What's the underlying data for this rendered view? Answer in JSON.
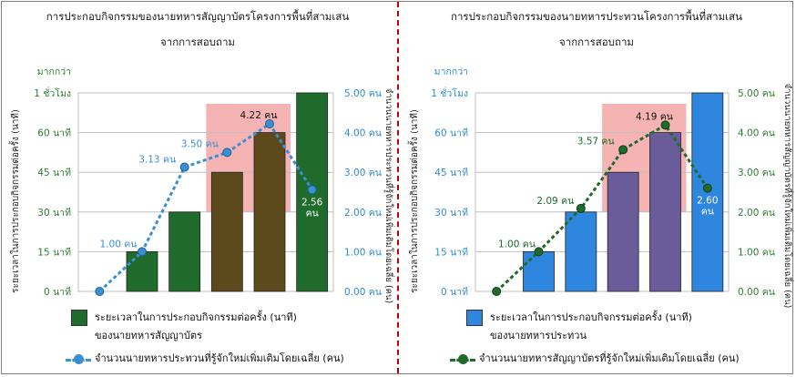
{
  "chart_data": [
    {
      "type": "bar",
      "title": "การประกอบกิจกรรมของนายทหารสัญญาบัตรโครงการพื้นที่สามเสน",
      "subtitle": "จากการสอบถาม",
      "ylabel_left": "ระยะเวลาในการประกอบกิจกรรมต่อครั้ง (นาที)",
      "ylabel_right": "จำนวนนายทหารประทวนที่รู้จักใหม่เพิ่มเติมโดยเฉลี่ย (คน)",
      "left_ticks": [
        "0 นาที",
        "15 นาที",
        "30 นาที",
        "45 นาที",
        "60 นาที",
        "1 ชั่วโมง"
      ],
      "left_top_extra": "มากกว่า",
      "right_ticks": [
        "0.00 คน",
        "1.00 คน",
        "2.00 คน",
        "3.00 คน",
        "4.00 คน",
        "5.00 คน"
      ],
      "ylim": [
        0,
        75
      ],
      "y2lim": [
        0,
        5
      ],
      "bar_values": [
        15,
        30,
        45,
        60,
        75
      ],
      "bar_colors": [
        "#1e6b2b",
        "#1e6b2b",
        "#5c4a1c",
        "#5c4a1c",
        "#1e6b2b"
      ],
      "highlight_bars": [
        2,
        3
      ],
      "highlight_color": "#f6b3b3",
      "series": [
        {
          "name": "จำนวนนายทหารประทวนที่รู้จักใหม่เพิ่มเติมโดยเฉลี่ย (คน)",
          "x": [
            0,
            1,
            2,
            3,
            4,
            5
          ],
          "values": [
            0,
            1.0,
            3.13,
            3.5,
            4.22,
            2.56
          ],
          "color": "#3b8fd3",
          "labels": [
            "",
            "1.00 คน",
            "3.13 คน",
            "3.50 คน",
            "4.22 คน",
            "2.56 คน"
          ]
        }
      ],
      "legend": {
        "bar_label_line1": "ระยะเวลาในการประกอบกิจกรรมต่อครั้ง (นาที)",
        "bar_label_line2": "ของนายทหารสัญญาบัตร",
        "bar_color": "#1e6b2b",
        "line_label": "จำนวนนายทหารประทวนที่รู้จักใหม่เพิ่มเติมโดยเฉลี่ย (คน)",
        "line_color": "#3b8fd3"
      },
      "tick_label_color": "#2f8ccf",
      "left_tick_color": "#2e7d32"
    },
    {
      "type": "bar",
      "title": "การประกอบกิจกรรมของนายทหารประทวนโครงการพื้นที่สามเสน",
      "subtitle": "จากการสอบถาม",
      "ylabel_left": "ระยะเวลาในการประกอบกิจกรรมต่อครั้ง (นาที)",
      "ylabel_right": "จำนวนนายทหารสัญญาบัตรที่รู้จักใหม่เพิ่มเติมโดยเฉลี่ย (คน)",
      "left_ticks": [
        "0 นาที",
        "15 นาที",
        "30 นาที",
        "45 นาที",
        "60 นาที",
        "1 ชั่วโมง"
      ],
      "left_top_extra": "มากกว่า",
      "right_ticks": [
        "0.00 คน",
        "1.00 คน",
        "2.00 คน",
        "3.00 คน",
        "4.00 คน",
        "5.00 คน"
      ],
      "ylim": [
        0,
        75
      ],
      "y2lim": [
        0,
        5
      ],
      "bar_values": [
        15,
        30,
        45,
        60,
        75
      ],
      "bar_colors": [
        "#2e86de",
        "#2e86de",
        "#6a5c9a",
        "#6a5c9a",
        "#2e86de"
      ],
      "highlight_bars": [
        2,
        3
      ],
      "highlight_color": "#f6b3b3",
      "series": [
        {
          "name": "จำนวนนายทหารสัญญาบัตรที่รู้จักใหม่เพิ่มเติมโดยเฉลี่ย (คน)",
          "x": [
            0,
            1,
            2,
            3,
            4,
            5
          ],
          "values": [
            0,
            1.0,
            2.09,
            3.57,
            4.19,
            2.6
          ],
          "color": "#1e6b2b",
          "labels": [
            "",
            "1.00 คน",
            "2.09 คน",
            "3.57 คน",
            "4.19 คน",
            "2.60 คน"
          ]
        }
      ],
      "legend": {
        "bar_label_line1": "ระยะเวลาในการประกอบกิจกรรมต่อครั้ง (นาที)",
        "bar_label_line2": "ของนายทหารประทวน",
        "bar_color": "#2e86de",
        "line_label": "จำนวนนายทหารสัญญาบัตรที่รู้จักใหม่เพิ่มเติมโดยเฉลี่ย (คน)",
        "line_color": "#1e6b2b"
      },
      "tick_label_color": "#2e7d32",
      "left_tick_color": "#2f8ccf"
    }
  ]
}
